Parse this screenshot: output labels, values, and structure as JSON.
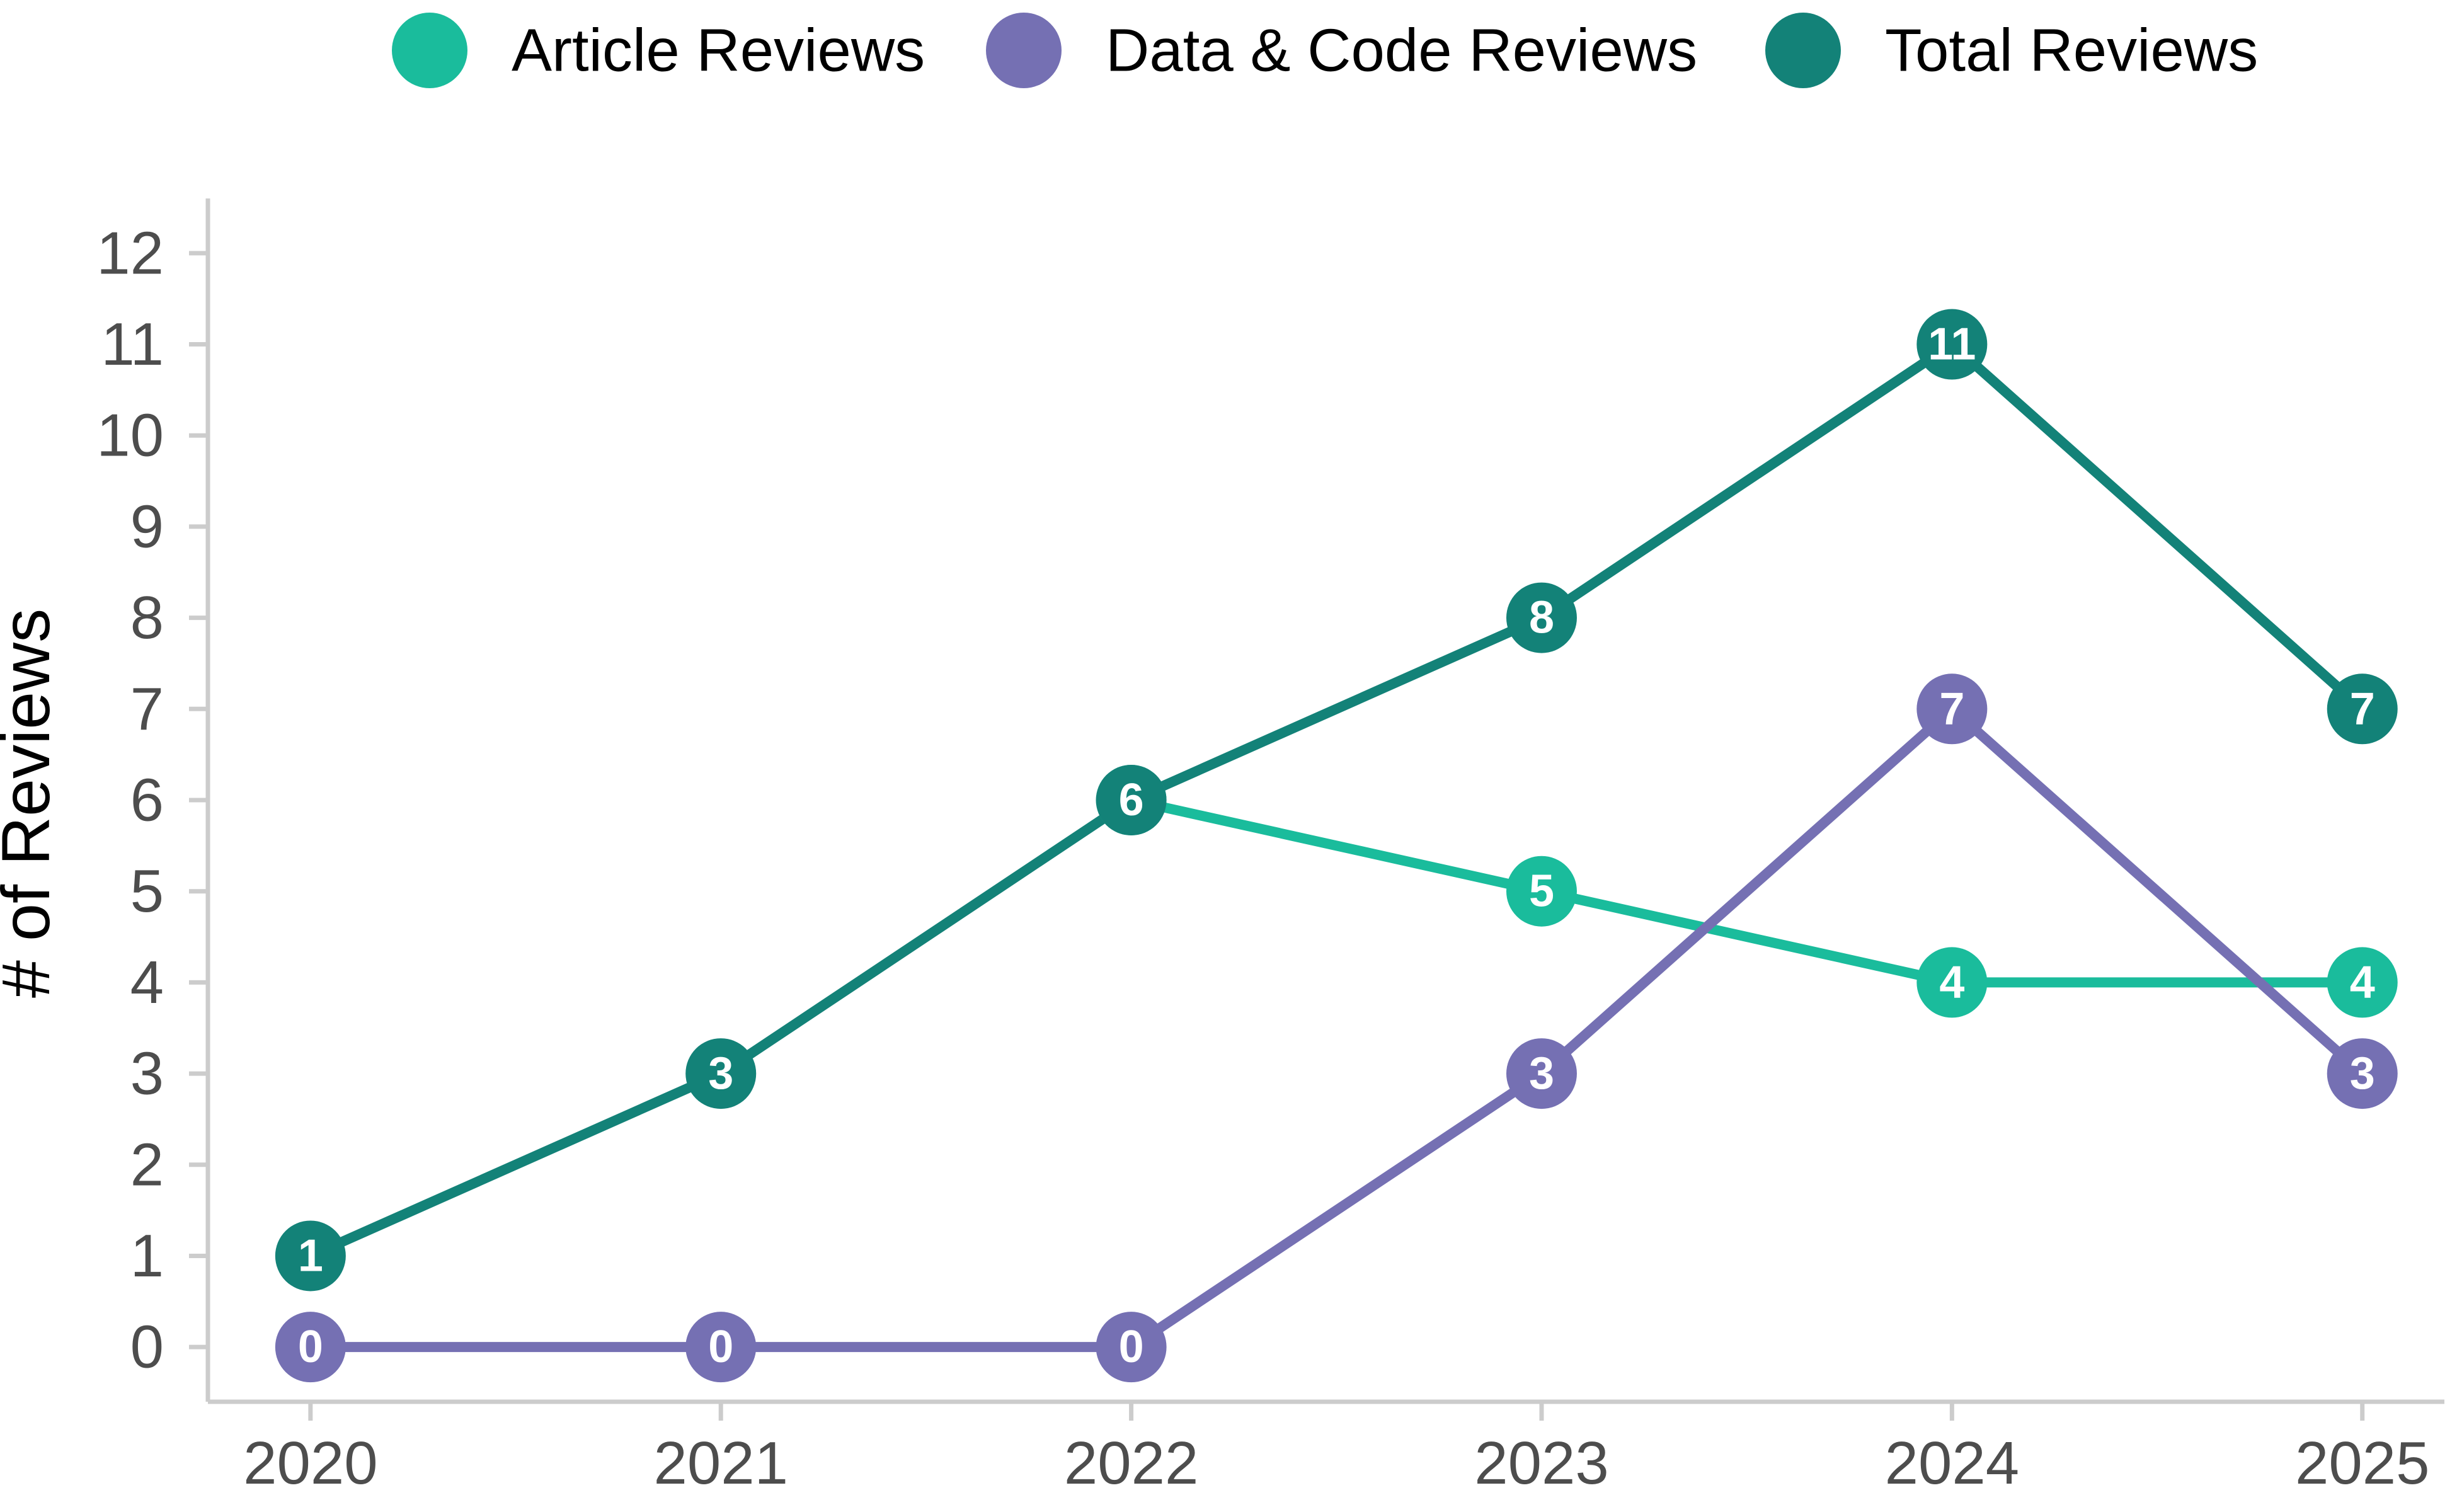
{
  "chart_data": {
    "type": "line",
    "title": "",
    "xlabel": "",
    "ylabel": "# of Reviews",
    "x": [
      "2020",
      "2021",
      "2022",
      "2023",
      "2024",
      "2025"
    ],
    "xlim": [
      2019.75,
      2025.2
    ],
    "ylim": [
      -0.6,
      12.6
    ],
    "yticks": [
      0,
      1,
      2,
      3,
      4,
      5,
      6,
      7,
      8,
      9,
      10,
      11,
      12
    ],
    "grid": false,
    "legend_position": "top",
    "point_labels": true,
    "series": [
      {
        "name": "Article Reviews",
        "color": "#1abc9c",
        "points": [
          {
            "x": "2022",
            "y": 6
          },
          {
            "x": "2023",
            "y": 5
          },
          {
            "x": "2024",
            "y": 4
          },
          {
            "x": "2025",
            "y": 4
          }
        ]
      },
      {
        "name": "Data & Code Reviews",
        "color": "#7570b3",
        "points": [
          {
            "x": "2020",
            "y": 0
          },
          {
            "x": "2021",
            "y": 0
          },
          {
            "x": "2022",
            "y": 0
          },
          {
            "x": "2023",
            "y": 3
          },
          {
            "x": "2024",
            "y": 7
          },
          {
            "x": "2025",
            "y": 3
          }
        ]
      },
      {
        "name": "Total Reviews",
        "color": "#138278",
        "points": [
          {
            "x": "2020",
            "y": 1
          },
          {
            "x": "2021",
            "y": 3
          },
          {
            "x": "2022",
            "y": 6
          },
          {
            "x": "2023",
            "y": 8
          },
          {
            "x": "2024",
            "y": 11
          },
          {
            "x": "2025",
            "y": 7
          }
        ]
      }
    ]
  }
}
